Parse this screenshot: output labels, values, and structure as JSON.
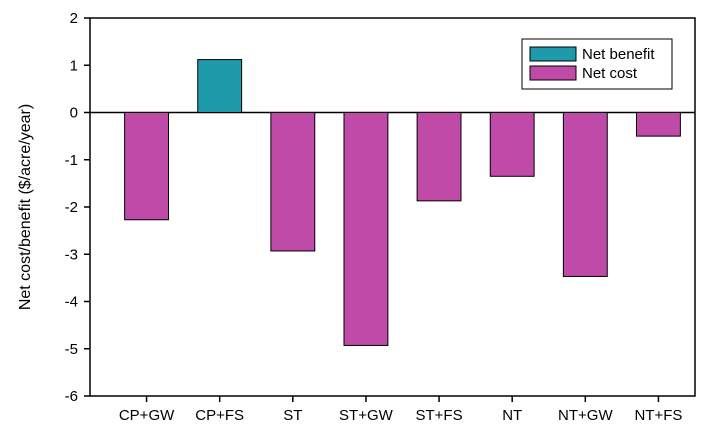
{
  "chart_data": {
    "type": "bar",
    "title": "",
    "xlabel": "",
    "ylabel": "Net cost/benefit ($/acre/year)",
    "ylim": [
      -6,
      2
    ],
    "y_ticks": [
      2,
      1,
      0,
      -1,
      -2,
      -3,
      -4,
      -5,
      -6
    ],
    "grid": false,
    "legend_position": "top-right",
    "categories": [
      "CP+GW",
      "CP+FS",
      "ST",
      "ST+GW",
      "ST+FS",
      "NT",
      "NT+GW",
      "NT+FS"
    ],
    "values": [
      -2.27,
      1.12,
      -2.93,
      -4.93,
      -1.87,
      -1.35,
      -3.47,
      -0.5
    ],
    "legend": [
      {
        "label": "Net benefit",
        "color": "#1e9aaa"
      },
      {
        "label": "Net cost",
        "color": "#c04aa8"
      }
    ],
    "colors": {
      "benefit": "#1e9aaa",
      "cost": "#c04aa8",
      "axis": "#000000"
    }
  }
}
